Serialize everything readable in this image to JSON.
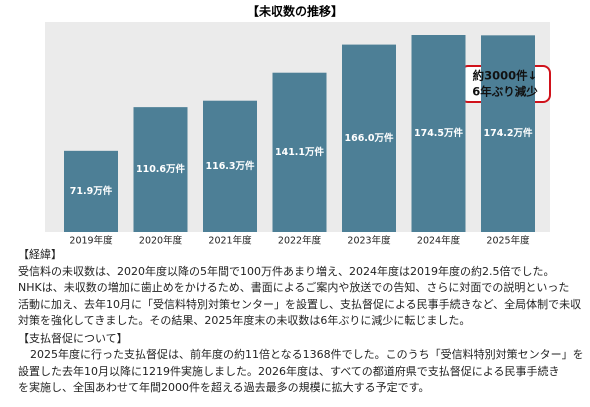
{
  "chart_data": {
    "type": "bar",
    "title": "【未収数の推移】",
    "categories": [
      "2019年度",
      "2020年度",
      "2021年度",
      "2022年度",
      "2023年度",
      "2024年度",
      "2025年度"
    ],
    "values": [
      71.9,
      110.6,
      116.3,
      141.1,
      166.0,
      174.5,
      174.2
    ],
    "value_labels": [
      "71.9万件",
      "110.6万件",
      "116.3万件",
      "141.1万件",
      "166.0万件",
      "174.5万件",
      "174.2万件"
    ],
    "color": "#4d7f96",
    "annotation": [
      "約3000件↓",
      "6年ぶり減少"
    ]
  },
  "sections": [
    {
      "heading": "【経緯】",
      "lines": [
        "受信料の未収数は、2020年度以降の5年間で100万件あまり増え、2024年度は2019年度の約2.5倍でした。",
        "NHKは、未収数の増加に歯止めをかけるため、書面によるご案内や放送での告知、さらに対面での説明といった",
        "活動に加え、去年10月に「受信料特別対策センター」を設置し、支払督促による民事手続きなど、全局体制で未収",
        "対策を強化してきました。その結果、2025年度末の未収数は6年ぶりに減少に転じました。"
      ]
    },
    {
      "heading": "【支払督促について】",
      "lines": [
        "2025年度に行った支払督促は、前年度の約11倍となる1368件でした。このうち「受信料特別対策センター」を",
        "設置した去年10月以降に1219件実施しました。2026年度は、すべての都道府県で支払督促による民事手続き",
        "を実施し、全国あわせて年間2000件を超える過去最多の規模に拡大する予定です。"
      ]
    }
  ]
}
